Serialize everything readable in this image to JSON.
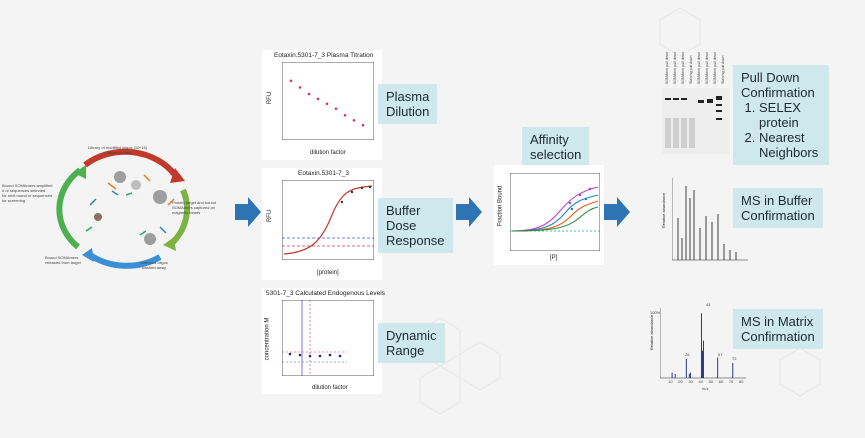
{
  "selex": {
    "top": "Library of modified oligos (10^15)\n+ Target protein",
    "right": "Protein target and bound\nSOMAmers captured on\nmagnetic beads",
    "bottom": "Unbound oligos\nwashed away",
    "left_bottom": "Bound SOMAmers\nreleased from target",
    "left_top": "Bound SOMAmers amplified\n# of sequences selected\nfor next round or sequenced\nfor screening"
  },
  "panels": {
    "plasma": {
      "title": "Eotaxin.5301-7_3 Plasma Titration",
      "ylabel": "RFU",
      "xlabel": "dilution factor",
      "label": "Plasma\nDilution"
    },
    "buffer": {
      "title": "Eotaxin.5301-7_3",
      "ylabel": "RFU",
      "xlabel": "[protein]",
      "label": "Buffer\nDose\nResponse"
    },
    "dynamic": {
      "title": "5301-7_3 Calculated Endogenous Levels",
      "ylabel": "concentration M",
      "xlabel": "dilution factor",
      "label": "Dynamic\nRange"
    },
    "affinity": {
      "label": "Affinity\nselection",
      "ylabel": "Fraction Bound",
      "xlabel": "[P]"
    },
    "pulldown": {
      "label_title": "Pull Down\nConfirmation",
      "items": [
        "SELEX protein",
        "Nearest Neighbors"
      ],
      "lanes": [
        "SOMAmer pull down",
        "SOMAmer pull down",
        "SOMAmer pull down",
        "Staining pull down",
        "SOMAmer pull down",
        "SOMAmer pull down",
        "SOMAmer pull down",
        "Staining pull down"
      ]
    },
    "ms_buffer": {
      "label": "MS in Buffer\nConfirmation",
      "ylabel": "Relative abundance"
    },
    "ms_matrix": {
      "label": "MS in Matrix\nConfirmation",
      "ylabel": "Relative abundance",
      "xlabel": "m/z",
      "top_label": "100%",
      "peak_labels": [
        "41",
        "26",
        "57",
        "72"
      ],
      "xticks": [
        "10",
        "20",
        "30",
        "40",
        "50",
        "60",
        "70",
        "80"
      ]
    }
  },
  "chart_data": [
    {
      "type": "scatter",
      "title": "Eotaxin.5301-7_3 Plasma Titration",
      "xlabel": "dilution factor",
      "ylabel": "RFU",
      "x": [
        1,
        1.5,
        2,
        2.5,
        3,
        3.5,
        4,
        4.5,
        5
      ],
      "y": [
        4.6,
        4.2,
        3.8,
        3.5,
        3.2,
        2.9,
        2.5,
        2.2,
        1.9
      ]
    },
    {
      "type": "line",
      "title": "Eotaxin.5301-7_3",
      "xlabel": "[protein]",
      "ylabel": "RFU"
    },
    {
      "type": "line",
      "title": "",
      "xlabel": "[P]",
      "ylabel": "Fraction Bound"
    },
    {
      "type": "scatter",
      "title": "5301-7_3 Calculated Endogenous Levels",
      "xlabel": "dilution factor",
      "ylabel": "concentration M"
    },
    {
      "type": "bar",
      "title": "",
      "xlabel": "m/z",
      "ylabel": "Relative abundance",
      "x": [
        12,
        15,
        26,
        29,
        30,
        41,
        42,
        43,
        57,
        72
      ],
      "values": [
        8,
        6,
        28,
        6,
        8,
        95,
        40,
        55,
        30,
        22
      ]
    }
  ]
}
